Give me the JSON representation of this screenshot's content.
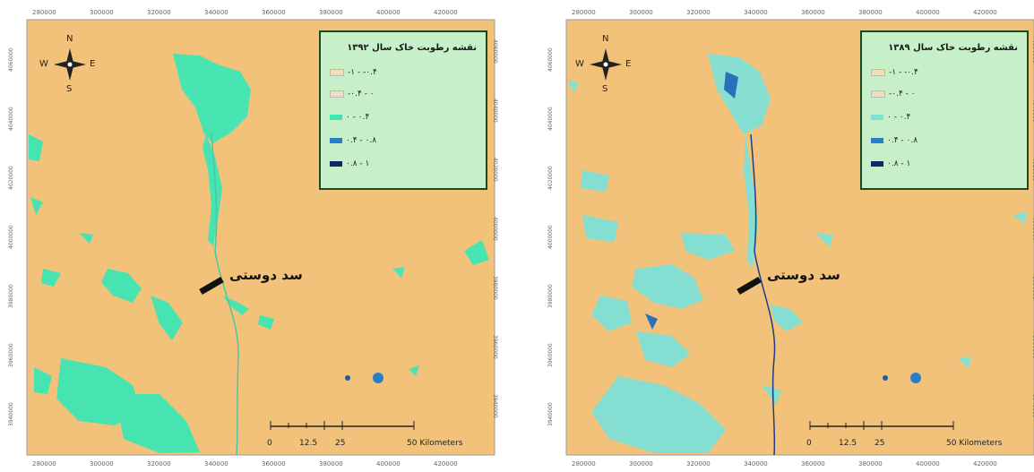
{
  "maps": [
    {
      "legend": {
        "title": "نقشه رطوبت خاک سال ۱۳۹۲",
        "items": [
          {
            "label": "-۱ - -۰.۴",
            "color": "#f5deb3"
          },
          {
            "label": "-۰.۴ - ۰",
            "color": "#e8e0c0"
          },
          {
            "label": "۰ - ۰.۴",
            "color": "#3ee6b4"
          },
          {
            "label": "۰.۴ - ۰.۸",
            "color": "#2a7fc8"
          },
          {
            "label": "۰.۸ - ۱",
            "color": "#0a2a6a"
          }
        ]
      },
      "dam_label": "سد دوستی"
    },
    {
      "legend": {
        "title": "نقشه رطوبت خاک سال ۱۳۸۹",
        "items": [
          {
            "label": "-۱ - -۰.۴",
            "color": "#f5deb3"
          },
          {
            "label": "-۰.۴ - ۰",
            "color": "#e8e0c0"
          },
          {
            "label": "۰ - ۰.۴",
            "color": "#7fe0d6"
          },
          {
            "label": "۰.۴ - ۰.۸",
            "color": "#2a7fc8"
          },
          {
            "label": "۰.۸ - ۱",
            "color": "#0a2a6a"
          }
        ]
      },
      "dam_label": "سد دوستی"
    }
  ],
  "compass": {
    "n": "N",
    "s": "S",
    "e": "E",
    "w": "W"
  },
  "scale": {
    "labels": [
      "0",
      "12.5",
      "25",
      "50 Kilometers"
    ]
  },
  "ticks_x": [
    "280000",
    "300000",
    "320000",
    "340000",
    "360000",
    "380000",
    "400000",
    "420000"
  ],
  "ticks_y": [
    "4060000",
    "4040000",
    "4020000",
    "4000000",
    "3980000",
    "3960000",
    "3940000"
  ],
  "colors": {
    "background": "#f2c27a",
    "wet": "#3ee6b4",
    "wet_light": "#7fe0d6"
  }
}
